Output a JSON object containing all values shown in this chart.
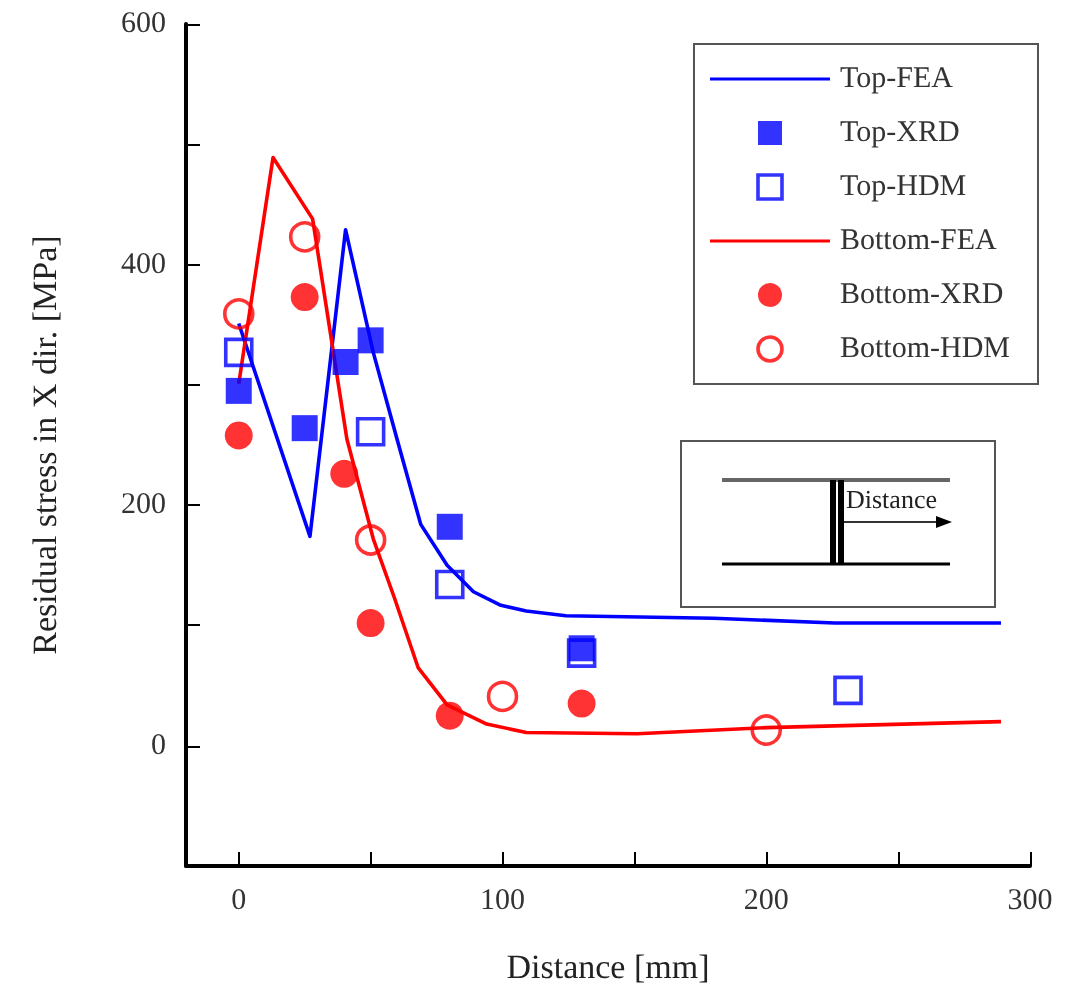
{
  "chart_data": {
    "type": "scatter",
    "xlabel": "Distance [mm]",
    "ylabel": "Residual stress in X dir. [MPa]",
    "xlim": [
      -20,
      300
    ],
    "xticks": [
      0,
      {
        "value": 50,
        "label": null
      },
      100,
      {
        "value": 150,
        "label": null
      },
      200,
      {
        "value": 250,
        "label": null
      },
      300
    ],
    "ylim": [
      -100,
      600
    ],
    "yticks": [
      0,
      {
        "value": 100,
        "label": null
      },
      200,
      {
        "value": 300,
        "label": null
      },
      400,
      {
        "value": 500,
        "label": null
      },
      600
    ],
    "grid": false,
    "legend": "top right",
    "annotations": [
      "Distance"
    ],
    "series": [
      {
        "name": "Top-FEA",
        "type": "line",
        "marker": "none",
        "color": "#0000ff",
        "x": [
          0,
          27,
          40.5,
          51,
          60,
          69,
          79,
          89,
          99,
          109,
          124,
          180,
          226,
          289
        ],
        "values": [
          351,
          174,
          429,
          327,
          255,
          184,
          150,
          128,
          117,
          112,
          108,
          106,
          102,
          102
        ]
      },
      {
        "name": "Top-XRD",
        "marker": "square",
        "color": "#0000ff",
        "x": [
          0,
          25,
          40.5,
          50,
          80,
          130
        ],
        "values": [
          295,
          264,
          319,
          337,
          182,
          81
        ]
      },
      {
        "name": "Top-HDM",
        "marker": "square",
        "color": "#0000ff",
        "x": [
          0,
          50,
          80,
          130,
          231
        ],
        "values": [
          327,
          261,
          134,
          77,
          46
        ]
      },
      {
        "name": "Bottom-FEA",
        "type": "line",
        "marker": "none",
        "color": "#ff0000",
        "x": [
          0,
          13,
          28,
          41,
          51,
          59,
          68,
          79,
          94,
          109,
          151,
          200,
          289
        ],
        "values": [
          301,
          489,
          438,
          255,
          172,
          123,
          65,
          34,
          18,
          11,
          10,
          15,
          20
        ]
      },
      {
        "name": "Bottom-XRD",
        "marker": "circle",
        "color": "#ff0000",
        "x": [
          0,
          25,
          40,
          50,
          80,
          130
        ],
        "values": [
          258,
          373,
          226,
          102,
          25,
          35
        ]
      },
      {
        "name": "Bottom-HDM",
        "marker": "circle",
        "color": "#ff0000",
        "x": [
          0,
          25,
          50,
          100,
          200
        ],
        "values": [
          359,
          423,
          171,
          41,
          13
        ]
      }
    ]
  }
}
